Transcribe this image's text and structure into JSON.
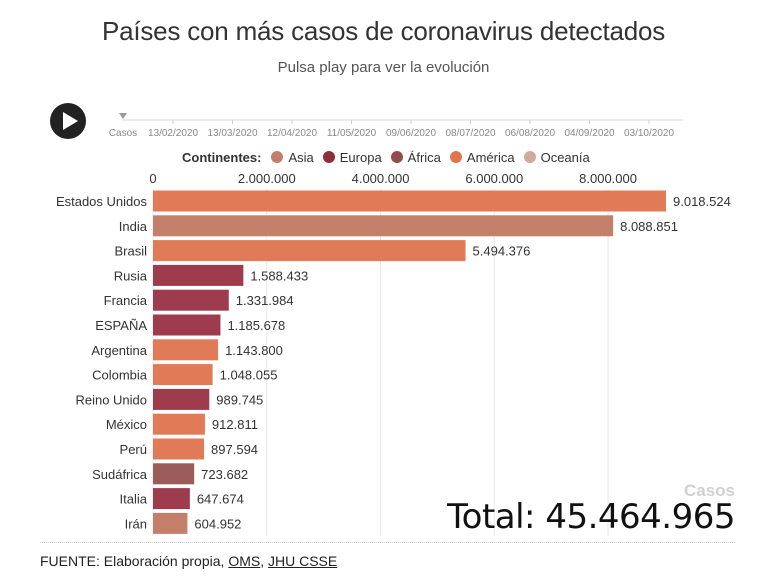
{
  "title": "Países con más casos de coronavirus detectados",
  "subtitle": "Pulsa play para ver la evolución",
  "timeline": {
    "start_label": "Casos",
    "dates": [
      "13/02/2020",
      "13/03/2020",
      "12/04/2020",
      "11/05/2020",
      "09/06/2020",
      "08/07/2020",
      "06/08/2020",
      "04/09/2020",
      "03/10/2020"
    ]
  },
  "legend": {
    "title": "Continentes:",
    "items": [
      {
        "label": "Asia",
        "color": "#c47f6a"
      },
      {
        "label": "Europa",
        "color": "#8e2d3c"
      },
      {
        "label": "África",
        "color": "#944a4f"
      },
      {
        "label": "América",
        "color": "#e07550"
      },
      {
        "label": "Oceanía",
        "color": "#d3a99a"
      }
    ]
  },
  "colors": {
    "Asia": "#c47f6a",
    "Europa": "#9e3b4d",
    "África": "#9c5c5a",
    "América": "#e07a57",
    "Oceanía": "#d3a99a"
  },
  "chart_data": {
    "type": "bar",
    "orientation": "horizontal",
    "x_ticks": [
      0,
      2000000,
      4000000,
      6000000,
      8000000
    ],
    "x_tick_labels": [
      "0",
      "2.000.000",
      "4.000.000",
      "6.000.000",
      "8.000.000"
    ],
    "xlim": [
      0,
      9018524
    ],
    "categories": [
      "Estados Unidos",
      "India",
      "Brasil",
      "Rusia",
      "Francia",
      "ESPAÑA",
      "Argentina",
      "Colombia",
      "Reino Unido",
      "México",
      "Perú",
      "Sudáfrica",
      "Italia",
      "Irán"
    ],
    "values": [
      9018524,
      8088851,
      5494376,
      1588433,
      1331984,
      1185678,
      1143800,
      1048055,
      989745,
      912811,
      897594,
      723682,
      647674,
      604952
    ],
    "value_labels": [
      "9.018.524",
      "8.088.851",
      "5.494.376",
      "1.588.433",
      "1.331.984",
      "1.185.678",
      "1.143.800",
      "1.048.055",
      "989.745",
      "912.811",
      "897.594",
      "723.682",
      "647.674",
      "604.952"
    ],
    "continents": [
      "América",
      "Asia",
      "América",
      "Europa",
      "Europa",
      "Europa",
      "América",
      "América",
      "Europa",
      "América",
      "América",
      "África",
      "Europa",
      "Asia"
    ]
  },
  "summary": {
    "label": "Casos",
    "total_text": "Total: 45.464.965"
  },
  "source": {
    "prefix": "FUENTE: Elaboración propia, ",
    "link1": "OMS",
    "separator": ", ",
    "link2": "JHU CSSE"
  }
}
